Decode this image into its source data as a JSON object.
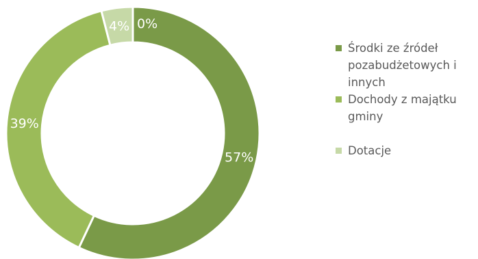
{
  "chart_data": {
    "type": "donut",
    "series": [
      {
        "name": "Środki ze źródeł pozabudżetowych i innych",
        "value": 57,
        "label": "57%",
        "color": "#7a9a48"
      },
      {
        "name": "Dochody z majątku gminy",
        "value": 39,
        "label": "39%",
        "color": "#9bbb59"
      },
      {
        "name": "Dotacje",
        "value": 4,
        "label": "4%",
        "color": "#c6d9a7"
      },
      {
        "name": "",
        "value": 0,
        "label": "0%",
        "color": "#ffffff"
      }
    ],
    "legend_position": "right"
  }
}
